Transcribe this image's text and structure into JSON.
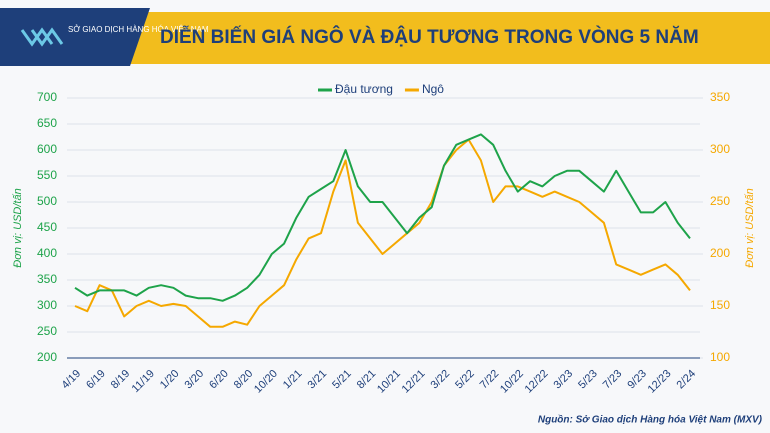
{
  "logo_text": "SỞ GIAO DỊCH HÀNG HÓA VIỆT NAM",
  "source": "Nguồn: Sở Giao dịch Hàng hóa Việt Nam (MXV)",
  "chart_data": {
    "type": "line",
    "title": "DIỄN BIẾN GIÁ NGÔ VÀ ĐẬU TƯƠNG TRONG VÒNG 5 NĂM",
    "ylabel": "Đơn vị: USD/tấn",
    "y2label": "Đơn vị: USD/tấn",
    "categories": [
      "4/19",
      null,
      "6/19",
      null,
      "8/19",
      null,
      "11/19",
      null,
      "1/20",
      null,
      "3/20",
      null,
      "6/20",
      null,
      "8/20",
      null,
      "10/20",
      null,
      "1/21",
      null,
      "3/21",
      null,
      "5/21",
      null,
      "8/21",
      null,
      "10/21",
      null,
      "12/21",
      null,
      "3/22",
      null,
      "5/22",
      null,
      "7/22",
      null,
      "10/22",
      null,
      "12/22",
      null,
      "3/23",
      null,
      "5/23",
      null,
      "7/23",
      null,
      "9/23",
      null,
      "12/23",
      null,
      "2/24"
    ],
    "series": [
      {
        "name": "Đậu tương",
        "color": "#1ea34a",
        "values": [
          335,
          320,
          330,
          330,
          330,
          320,
          335,
          340,
          335,
          320,
          315,
          315,
          310,
          320,
          335,
          360,
          400,
          420,
          470,
          510,
          525,
          540,
          600,
          530,
          500,
          500,
          470,
          440,
          470,
          490,
          570,
          610,
          620,
          630,
          610,
          560,
          520,
          540,
          530,
          550,
          560,
          560,
          540,
          520,
          560,
          520,
          480,
          480,
          500,
          460,
          430
        ]
      },
      {
        "name": "Ngô",
        "color": "#f5a800",
        "axis": "y2",
        "values": [
          150,
          145,
          170,
          165,
          140,
          150,
          155,
          150,
          152,
          150,
          140,
          130,
          130,
          135,
          132,
          150,
          160,
          170,
          195,
          215,
          220,
          260,
          290,
          230,
          215,
          200,
          210,
          220,
          230,
          250,
          285,
          300,
          310,
          290,
          250,
          265,
          265,
          260,
          255,
          260,
          255,
          250,
          240,
          230,
          190,
          185,
          180,
          185,
          190,
          180,
          165
        ]
      }
    ],
    "ylim": [
      200,
      700
    ],
    "yticks": [
      200,
      250,
      300,
      350,
      400,
      450,
      500,
      550,
      600,
      650,
      700
    ],
    "y2lim": [
      100,
      350
    ],
    "y2ticks": [
      100,
      150,
      200,
      250,
      300,
      350
    ],
    "grid": true,
    "legend": "top"
  }
}
